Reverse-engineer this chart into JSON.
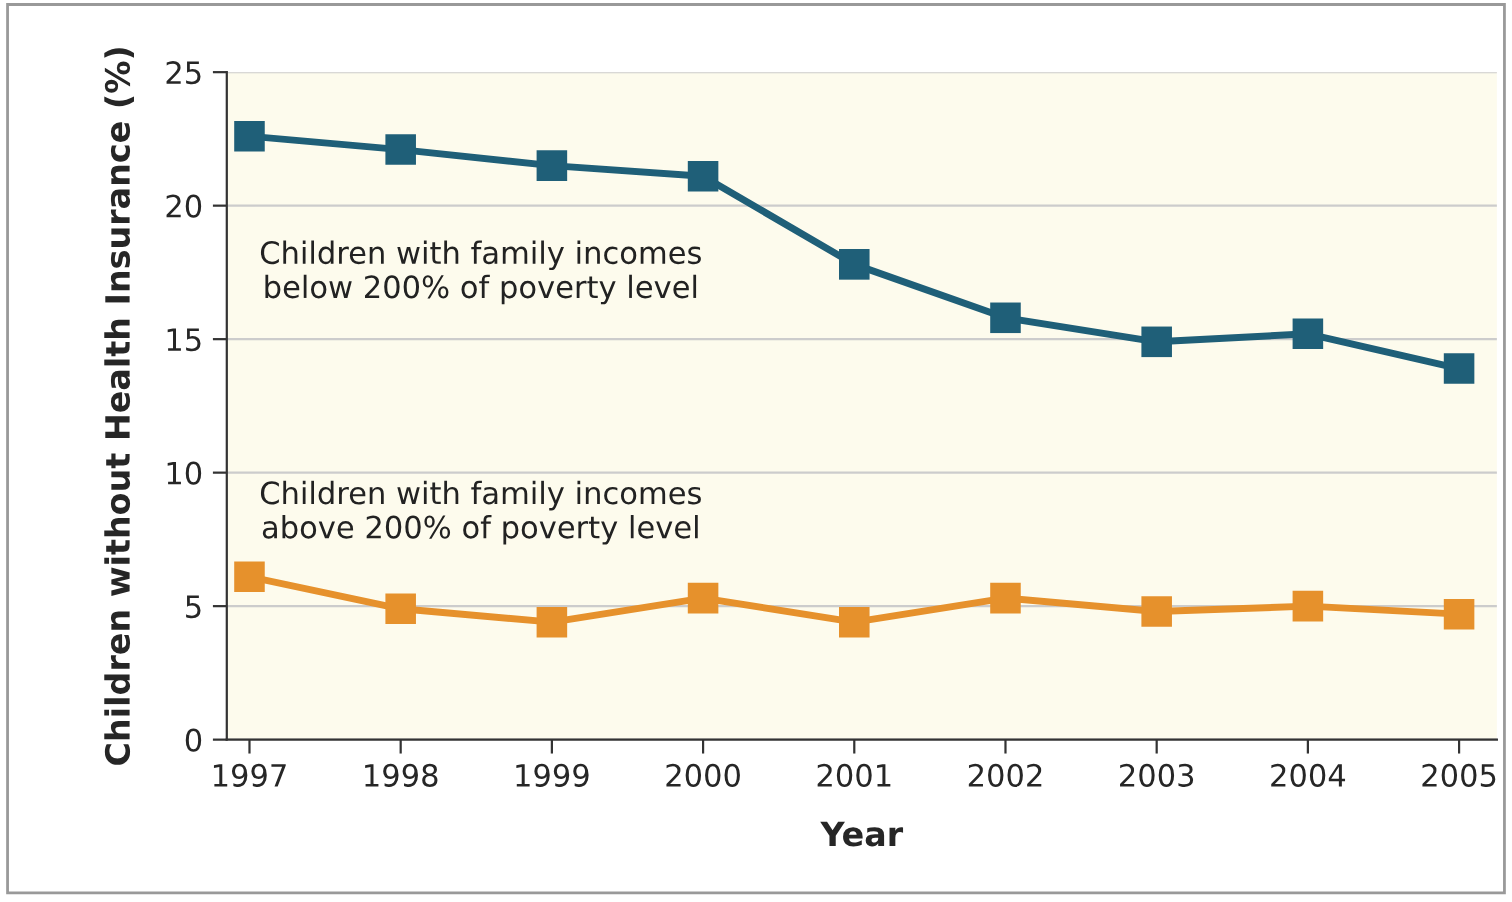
{
  "chart_data": {
    "type": "line",
    "xlabel": "Year",
    "ylabel": "Children without Health Insurance (%)",
    "x": [
      1997,
      1998,
      1999,
      2000,
      2001,
      2002,
      2003,
      2004,
      2005
    ],
    "series": [
      {
        "name": "Children with family incomes\nbelow 200% of poverty level",
        "color": "#1f5f78",
        "values": [
          22.6,
          22.1,
          21.5,
          21.1,
          17.8,
          15.8,
          14.9,
          15.2,
          13.9
        ]
      },
      {
        "name": "Children with family incomes\nabove 200% of poverty level",
        "color": "#e6912c",
        "values": [
          6.1,
          4.9,
          4.4,
          5.3,
          4.4,
          5.3,
          4.8,
          5.0,
          4.7
        ]
      }
    ],
    "xlim": [
      1996.85,
      2005.25
    ],
    "xticks": [
      1997,
      1998,
      1999,
      2000,
      2001,
      2002,
      2003,
      2004,
      2005
    ],
    "ylim": [
      0,
      25
    ],
    "yticks": [
      0,
      5,
      10,
      15,
      20,
      25
    ],
    "grid": "y",
    "marker": "square",
    "line_style": "solid"
  }
}
